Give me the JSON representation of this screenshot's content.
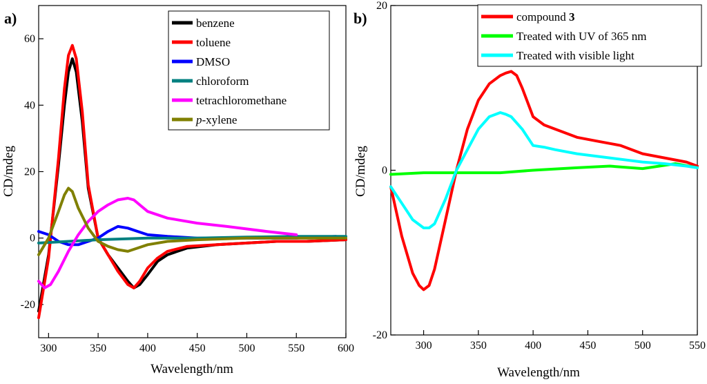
{
  "chart_data": [
    {
      "panel_label": "a)",
      "type": "line",
      "xlabel": "Wavelength/nm",
      "ylabel": "CD/mdeg",
      "xlim": [
        290,
        600
      ],
      "ylim": [
        -30,
        70
      ],
      "xticks": [
        300,
        350,
        400,
        450,
        500,
        550,
        600
      ],
      "yticks": [
        -20,
        0,
        20,
        40,
        60
      ],
      "legend_position": "top-right",
      "series": [
        {
          "name": "benzene",
          "color": "#000000",
          "x": [
            290,
            300,
            310,
            316,
            320,
            324,
            328,
            334,
            340,
            350,
            360,
            370,
            380,
            386,
            392,
            400,
            410,
            420,
            440,
            470,
            500,
            530,
            560,
            600
          ],
          "y": [
            -22,
            -5,
            22,
            40,
            50,
            54,
            50,
            35,
            15,
            0,
            -5,
            -9,
            -13,
            -15,
            -14,
            -11,
            -7,
            -5,
            -3,
            -2,
            -1.5,
            -1,
            -1,
            -0.5
          ]
        },
        {
          "name": "toluene",
          "color": "#ff0000",
          "x": [
            290,
            300,
            310,
            316,
            320,
            324,
            328,
            334,
            340,
            350,
            360,
            370,
            380,
            386,
            392,
            400,
            410,
            420,
            440,
            470,
            500,
            530,
            560,
            600
          ],
          "y": [
            -24,
            -6,
            24,
            45,
            55,
            58,
            54,
            38,
            16,
            0,
            -5,
            -10,
            -14,
            -15,
            -13,
            -9,
            -6,
            -4,
            -2.5,
            -2,
            -1.5,
            -1,
            -1,
            -0.5
          ]
        },
        {
          "name": "DMSO",
          "color": "#0000ff",
          "x": [
            290,
            300,
            310,
            320,
            330,
            340,
            350,
            360,
            370,
            380,
            390,
            400,
            420,
            450,
            500,
            550,
            590
          ],
          "y": [
            2,
            1,
            -1,
            -2,
            -2,
            -1,
            0,
            2,
            3.5,
            3,
            2,
            1,
            0.5,
            0,
            0,
            0,
            0.5
          ]
        },
        {
          "name": "chloroform",
          "color": "#008080",
          "x": [
            290,
            320,
            350,
            400,
            450,
            500,
            550,
            600
          ],
          "y": [
            -1.5,
            -1,
            -0.5,
            0,
            0,
            0.3,
            0.5,
            0.5
          ]
        },
        {
          "name": "tetrachloromethane",
          "color": "#ff00ff",
          "x": [
            290,
            296,
            302,
            310,
            320,
            330,
            340,
            350,
            360,
            370,
            380,
            386,
            392,
            400,
            420,
            450,
            480,
            520,
            550
          ],
          "y": [
            -13,
            -15,
            -14,
            -10,
            -4,
            1,
            5,
            8,
            10,
            11.5,
            12,
            11.5,
            10,
            8,
            6,
            4.5,
            3.5,
            2,
            1
          ]
        },
        {
          "name": "p-xylene",
          "color": "#808000",
          "x": [
            290,
            300,
            310,
            316,
            320,
            324,
            330,
            340,
            350,
            360,
            370,
            380,
            390,
            400,
            420,
            450,
            500,
            550,
            600
          ],
          "y": [
            -5,
            0,
            8,
            13,
            15,
            14,
            9,
            3,
            -1,
            -2.5,
            -3.5,
            -4,
            -3,
            -2,
            -1,
            -0.5,
            0,
            0,
            0
          ]
        }
      ]
    },
    {
      "panel_label": "b)",
      "type": "line",
      "xlabel": "Wavelength/nm",
      "ylabel": "CD/mdeg",
      "xlim": [
        270,
        550
      ],
      "ylim": [
        -20,
        20
      ],
      "xticks": [
        300,
        350,
        400,
        450,
        500,
        550
      ],
      "yticks": [
        -20,
        0,
        20
      ],
      "legend_position": "top-right",
      "series": [
        {
          "name": "compound 3",
          "name_main": "compound ",
          "name_bold": "3",
          "color": "#ff0000",
          "x": [
            270,
            280,
            290,
            296,
            300,
            305,
            310,
            320,
            330,
            340,
            350,
            360,
            370,
            375,
            380,
            385,
            390,
            400,
            410,
            420,
            440,
            460,
            480,
            500,
            520,
            540,
            550
          ],
          "y": [
            -2,
            -8,
            -12.5,
            -14,
            -14.5,
            -14,
            -12,
            -6,
            0,
            5,
            8.5,
            10.5,
            11.5,
            11.8,
            12,
            11.5,
            10,
            6.5,
            5.5,
            5,
            4,
            3.5,
            3,
            2,
            1.5,
            1,
            0.5
          ]
        },
        {
          "name": "Treated with UV of 365 nm",
          "color": "#00ff00",
          "x": [
            270,
            300,
            330,
            370,
            400,
            440,
            470,
            500,
            530,
            550
          ],
          "y": [
            -0.5,
            -0.3,
            -0.3,
            -0.3,
            0,
            0.3,
            0.5,
            0.2,
            0.8,
            0.3
          ]
        },
        {
          "name": "Treated with visible light",
          "color": "#00ffff",
          "x": [
            270,
            280,
            290,
            300,
            305,
            310,
            320,
            330,
            340,
            350,
            360,
            370,
            375,
            380,
            390,
            400,
            410,
            420,
            440,
            470,
            500,
            520,
            540,
            550
          ],
          "y": [
            -2,
            -4,
            -6,
            -7,
            -7,
            -6.5,
            -3.5,
            0,
            2.5,
            5,
            6.5,
            7,
            6.8,
            6.5,
            5,
            3,
            2.8,
            2.5,
            2,
            1.5,
            1,
            0.8,
            0.5,
            0.3
          ]
        }
      ]
    }
  ]
}
